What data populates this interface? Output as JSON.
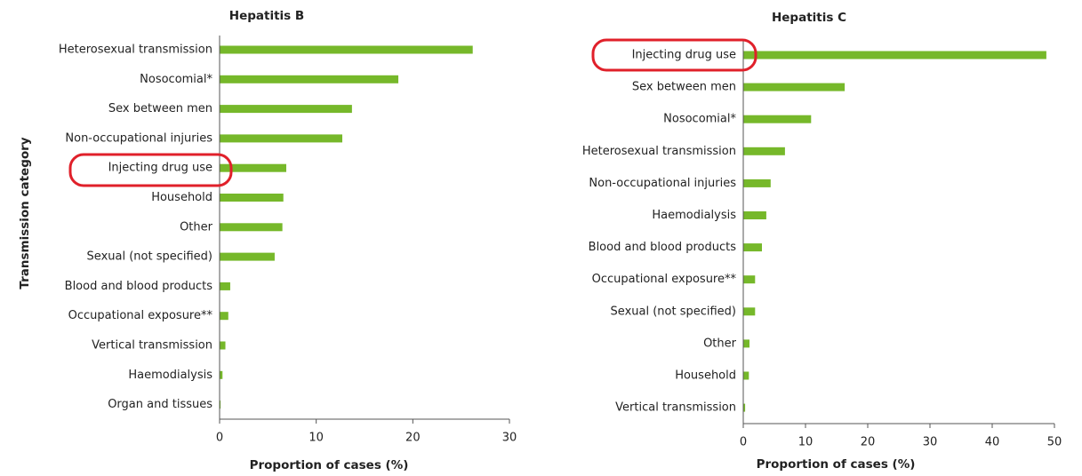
{
  "chart_data": [
    {
      "type": "barh",
      "title": "Hepatitis B",
      "x_label": "Proportion of cases (%)",
      "y_label": "Transmission category",
      "categories": [
        "Heterosexual transmission",
        "Nosocomial*",
        "Sex between men",
        "Non-occupational injuries",
        "Injecting drug use",
        "Household",
        "Other",
        "Sexual (not specified)",
        "Blood and blood products",
        "Occupational exposure**",
        "Vertical transmission",
        "Haemodialysis",
        "Organ and tissues"
      ],
      "values": [
        26.2,
        18.5,
        13.7,
        12.7,
        6.9,
        6.6,
        6.5,
        5.7,
        1.1,
        0.9,
        0.6,
        0.3,
        0.1
      ],
      "color": "#76b82a",
      "xlim": [
        0,
        30
      ],
      "xticks": [
        0,
        10,
        20,
        30
      ]
    },
    {
      "type": "barh",
      "title": "Hepatitis C",
      "x_label": "Proportion of cases (%)",
      "categories": [
        "Injecting drug use",
        "Sex between men",
        "Nosocomial*",
        "Heterosexual transmission",
        "Non-occupational injuries",
        "Haemodialysis",
        "Blood and blood products",
        "Occupational exposure**",
        "Sexual (not specified)",
        "Other",
        "Household",
        "Vertical transmission"
      ],
      "values": [
        48.7,
        16.3,
        10.9,
        6.7,
        4.4,
        3.7,
        3.0,
        1.9,
        1.9,
        1.0,
        0.9,
        0.3
      ],
      "color": "#76b82a",
      "xlim": [
        0,
        50
      ],
      "xticks": [
        0,
        10,
        20,
        30,
        40,
        50
      ]
    }
  ]
}
